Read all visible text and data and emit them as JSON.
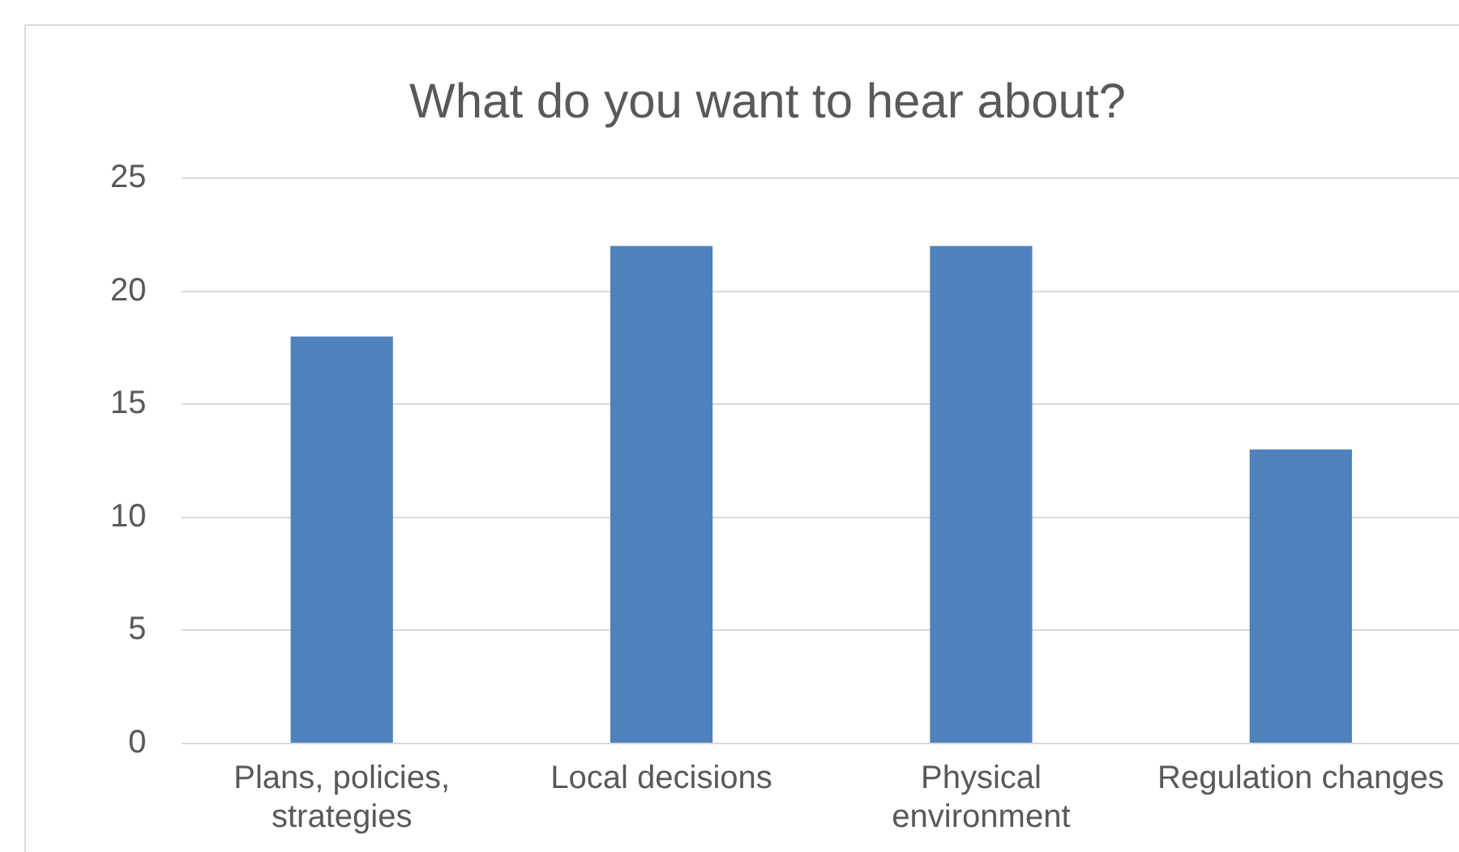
{
  "chart_data": {
    "type": "bar",
    "title": "What do you want to hear about?",
    "categories": [
      "Plans, policies, strategies",
      "Local decisions",
      "Physical environment",
      "Regulation changes"
    ],
    "values": [
      18,
      22,
      22,
      13
    ],
    "color": "#4f81bd",
    "ylim": [
      0,
      25
    ],
    "yticks": [
      0,
      5,
      10,
      15,
      20,
      25
    ],
    "grid": "y",
    "legend": false
  }
}
